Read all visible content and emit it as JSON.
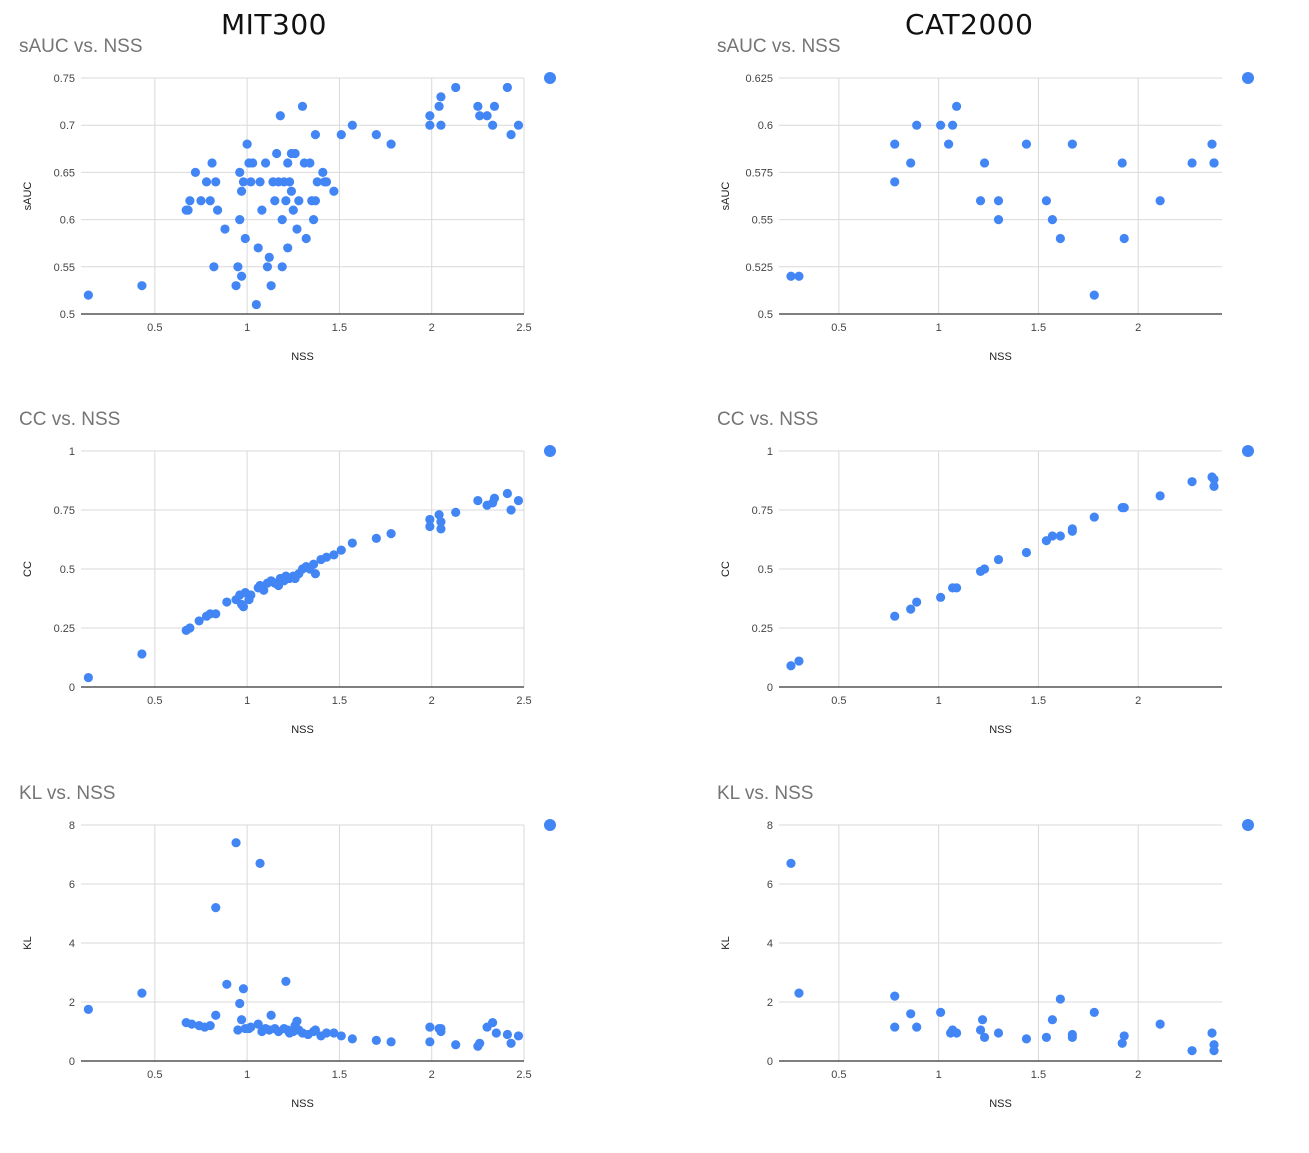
{
  "column_titles": [
    "MIT300",
    "CAT2000"
  ],
  "colors": {
    "point": "#4285f4",
    "grid": "#d9d9d9",
    "axis": "#333333",
    "title": "#757575"
  },
  "chart_data": [
    {
      "type": "scatter",
      "title": "sAUC vs. NSS",
      "xlabel": "NSS",
      "ylabel": "sAUC",
      "xlim": [
        0.1,
        2.5
      ],
      "ylim": [
        0.5,
        0.75
      ],
      "xticks": [
        0.5,
        1,
        1.5,
        2,
        2.5
      ],
      "xtick_labels": [
        "0.5",
        "1",
        "1.5",
        "2",
        "2.5"
      ],
      "yticks": [
        0.5,
        0.55,
        0.6,
        0.65,
        0.7,
        0.75
      ],
      "ytick_labels": [
        "0.5",
        "0.55",
        "0.6",
        "0.65",
        "0.7",
        "0.75"
      ],
      "legend": "top-right",
      "x": [
        0.14,
        0.43,
        0.67,
        0.68,
        0.69,
        0.72,
        0.75,
        0.78,
        0.8,
        0.81,
        0.82,
        0.83,
        0.84,
        0.88,
        0.94,
        0.95,
        0.96,
        0.96,
        0.97,
        0.97,
        0.98,
        0.99,
        1.0,
        1.01,
        1.02,
        1.03,
        1.05,
        1.06,
        1.07,
        1.08,
        1.1,
        1.11,
        1.12,
        1.13,
        1.14,
        1.15,
        1.16,
        1.17,
        1.18,
        1.19,
        1.19,
        1.2,
        1.21,
        1.22,
        1.22,
        1.23,
        1.24,
        1.24,
        1.25,
        1.26,
        1.27,
        1.28,
        1.3,
        1.31,
        1.32,
        1.34,
        1.35,
        1.36,
        1.37,
        1.37,
        1.38,
        1.41,
        1.42,
        1.43,
        1.47,
        1.51,
        1.57,
        1.7,
        1.78,
        1.99,
        1.99,
        2.04,
        2.05,
        2.05,
        2.13,
        2.25,
        2.26,
        2.3,
        2.33,
        2.34,
        2.41,
        2.43,
        2.47
      ],
      "y": [
        0.52,
        0.53,
        0.61,
        0.61,
        0.62,
        0.65,
        0.62,
        0.64,
        0.62,
        0.66,
        0.55,
        0.64,
        0.61,
        0.59,
        0.53,
        0.55,
        0.65,
        0.6,
        0.63,
        0.54,
        0.64,
        0.58,
        0.68,
        0.66,
        0.64,
        0.66,
        0.51,
        0.57,
        0.64,
        0.61,
        0.66,
        0.55,
        0.56,
        0.53,
        0.64,
        0.62,
        0.67,
        0.64,
        0.71,
        0.55,
        0.6,
        0.64,
        0.62,
        0.66,
        0.57,
        0.64,
        0.67,
        0.63,
        0.61,
        0.67,
        0.59,
        0.62,
        0.72,
        0.66,
        0.58,
        0.66,
        0.62,
        0.6,
        0.62,
        0.69,
        0.64,
        0.65,
        0.64,
        0.64,
        0.63,
        0.69,
        0.7,
        0.69,
        0.68,
        0.71,
        0.7,
        0.72,
        0.73,
        0.7,
        0.74,
        0.72,
        0.71,
        0.71,
        0.7,
        0.72,
        0.74,
        0.69,
        0.7
      ]
    },
    {
      "type": "scatter",
      "title": "sAUC vs. NSS",
      "xlabel": "NSS",
      "ylabel": "sAUC",
      "xlim": [
        0.2,
        2.42
      ],
      "ylim": [
        0.5,
        0.625
      ],
      "xticks": [
        0.5,
        1,
        1.5,
        2
      ],
      "xtick_labels": [
        "0.5",
        "1",
        "1.5",
        "2"
      ],
      "yticks": [
        0.5,
        0.525,
        0.55,
        0.575,
        0.6,
        0.625
      ],
      "ytick_labels": [
        "0.5",
        "0.525",
        "0.55",
        "0.575",
        "0.6",
        "0.625"
      ],
      "legend": "top-right",
      "x": [
        0.26,
        0.3,
        0.78,
        0.78,
        0.86,
        0.89,
        1.01,
        1.05,
        1.07,
        1.09,
        1.21,
        1.23,
        1.3,
        1.3,
        1.44,
        1.54,
        1.57,
        1.61,
        1.67,
        1.78,
        1.92,
        1.93,
        2.11,
        2.27,
        2.37,
        2.38,
        2.38
      ],
      "y": [
        0.52,
        0.52,
        0.59,
        0.57,
        0.58,
        0.6,
        0.6,
        0.59,
        0.6,
        0.61,
        0.56,
        0.58,
        0.56,
        0.55,
        0.59,
        0.56,
        0.55,
        0.54,
        0.59,
        0.51,
        0.58,
        0.54,
        0.56,
        0.58,
        0.59,
        0.58,
        0.58
      ]
    },
    {
      "type": "scatter",
      "title": "CC vs. NSS",
      "xlabel": "NSS",
      "ylabel": "CC",
      "xlim": [
        0.1,
        2.5
      ],
      "ylim": [
        0,
        1
      ],
      "xticks": [
        0.5,
        1,
        1.5,
        2,
        2.5
      ],
      "xtick_labels": [
        "0.5",
        "1",
        "1.5",
        "2",
        "2.5"
      ],
      "yticks": [
        0,
        0.25,
        0.5,
        0.75,
        1
      ],
      "ytick_labels": [
        "0",
        "0.25",
        "0.5",
        "0.75",
        "1"
      ],
      "legend": "top-right",
      "x": [
        0.14,
        0.43,
        0.67,
        0.69,
        0.74,
        0.78,
        0.8,
        0.83,
        0.89,
        0.94,
        0.96,
        0.97,
        0.98,
        0.99,
        1.01,
        1.02,
        1.06,
        1.07,
        1.09,
        1.11,
        1.13,
        1.15,
        1.17,
        1.18,
        1.2,
        1.21,
        1.23,
        1.25,
        1.26,
        1.28,
        1.3,
        1.32,
        1.34,
        1.36,
        1.37,
        1.4,
        1.43,
        1.47,
        1.51,
        1.57,
        1.7,
        1.78,
        1.99,
        1.99,
        2.04,
        2.05,
        2.05,
        2.13,
        2.25,
        2.3,
        2.33,
        2.34,
        2.41,
        2.43,
        2.47
      ],
      "y": [
        0.04,
        0.14,
        0.24,
        0.25,
        0.28,
        0.3,
        0.31,
        0.31,
        0.36,
        0.37,
        0.39,
        0.35,
        0.34,
        0.4,
        0.37,
        0.39,
        0.42,
        0.43,
        0.41,
        0.44,
        0.45,
        0.44,
        0.43,
        0.46,
        0.45,
        0.47,
        0.46,
        0.47,
        0.46,
        0.48,
        0.5,
        0.51,
        0.5,
        0.52,
        0.48,
        0.54,
        0.55,
        0.56,
        0.58,
        0.61,
        0.63,
        0.65,
        0.71,
        0.68,
        0.73,
        0.7,
        0.67,
        0.74,
        0.79,
        0.77,
        0.78,
        0.8,
        0.82,
        0.75,
        0.79
      ]
    },
    {
      "type": "scatter",
      "title": "CC vs. NSS",
      "xlabel": "NSS",
      "ylabel": "CC",
      "xlim": [
        0.2,
        2.42
      ],
      "ylim": [
        0,
        1
      ],
      "xticks": [
        0.5,
        1,
        1.5,
        2
      ],
      "xtick_labels": [
        "0.5",
        "1",
        "1.5",
        "2"
      ],
      "yticks": [
        0,
        0.25,
        0.5,
        0.75,
        1
      ],
      "ytick_labels": [
        "0",
        "0.25",
        "0.5",
        "0.75",
        "1"
      ],
      "legend": "top-right",
      "x": [
        0.26,
        0.3,
        0.78,
        0.86,
        0.89,
        1.01,
        1.07,
        1.09,
        1.21,
        1.23,
        1.3,
        1.44,
        1.54,
        1.57,
        1.61,
        1.67,
        1.67,
        1.78,
        1.92,
        1.93,
        2.11,
        2.27,
        2.37,
        2.38,
        2.38
      ],
      "y": [
        0.09,
        0.11,
        0.3,
        0.33,
        0.36,
        0.38,
        0.42,
        0.42,
        0.49,
        0.5,
        0.54,
        0.57,
        0.62,
        0.64,
        0.64,
        0.66,
        0.67,
        0.72,
        0.76,
        0.76,
        0.81,
        0.87,
        0.89,
        0.88,
        0.85
      ]
    },
    {
      "type": "scatter",
      "title": "KL vs. NSS",
      "xlabel": "NSS",
      "ylabel": "KL",
      "xlim": [
        0.1,
        2.5
      ],
      "ylim": [
        0,
        8
      ],
      "xticks": [
        0.5,
        1,
        1.5,
        2,
        2.5
      ],
      "xtick_labels": [
        "0.5",
        "1",
        "1.5",
        "2",
        "2.5"
      ],
      "yticks": [
        0,
        2,
        4,
        6,
        8
      ],
      "ytick_labels": [
        "0",
        "2",
        "4",
        "6",
        "8"
      ],
      "legend": "top-right",
      "x": [
        0.14,
        0.43,
        0.67,
        0.7,
        0.74,
        0.77,
        0.8,
        0.83,
        0.83,
        0.89,
        0.94,
        0.95,
        0.96,
        0.97,
        0.98,
        0.99,
        1.01,
        1.02,
        1.06,
        1.07,
        1.08,
        1.1,
        1.12,
        1.13,
        1.15,
        1.17,
        1.2,
        1.21,
        1.22,
        1.23,
        1.25,
        1.26,
        1.27,
        1.28,
        1.3,
        1.33,
        1.36,
        1.37,
        1.4,
        1.43,
        1.47,
        1.51,
        1.57,
        1.7,
        1.78,
        1.99,
        1.99,
        2.04,
        2.05,
        2.05,
        2.13,
        2.25,
        2.26,
        2.3,
        2.33,
        2.35,
        2.41,
        2.43,
        2.47
      ],
      "y": [
        1.75,
        2.3,
        1.3,
        1.25,
        1.2,
        1.15,
        1.2,
        1.55,
        5.2,
        2.6,
        7.4,
        1.05,
        1.95,
        1.4,
        2.45,
        1.1,
        1.1,
        1.15,
        1.25,
        6.7,
        1.0,
        1.1,
        1.05,
        1.55,
        1.1,
        1.0,
        1.1,
        2.7,
        1.05,
        0.95,
        1.0,
        1.2,
        1.35,
        1.05,
        0.95,
        0.9,
        1.0,
        1.05,
        0.85,
        0.95,
        0.95,
        0.85,
        0.75,
        0.7,
        0.65,
        1.15,
        0.65,
        1.1,
        1.0,
        1.1,
        0.55,
        0.5,
        0.6,
        1.15,
        1.3,
        0.95,
        0.9,
        0.6,
        0.85
      ]
    },
    {
      "type": "scatter",
      "title": "KL vs. NSS",
      "xlabel": "NSS",
      "ylabel": "KL",
      "xlim": [
        0.2,
        2.42
      ],
      "ylim": [
        0,
        8
      ],
      "xticks": [
        0.5,
        1,
        1.5,
        2
      ],
      "xtick_labels": [
        "0.5",
        "1",
        "1.5",
        "2"
      ],
      "yticks": [
        0,
        2,
        4,
        6,
        8
      ],
      "ytick_labels": [
        "0",
        "2",
        "4",
        "6",
        "8"
      ],
      "legend": "top-right",
      "x": [
        0.26,
        0.3,
        0.78,
        0.78,
        0.86,
        0.89,
        1.01,
        1.06,
        1.07,
        1.09,
        1.21,
        1.22,
        1.23,
        1.3,
        1.44,
        1.54,
        1.57,
        1.61,
        1.67,
        1.67,
        1.78,
        1.92,
        1.93,
        2.11,
        2.27,
        2.37,
        2.38,
        2.38
      ],
      "y": [
        6.7,
        2.3,
        2.2,
        1.15,
        1.6,
        1.15,
        1.65,
        0.95,
        1.05,
        0.95,
        1.05,
        1.4,
        0.8,
        0.95,
        0.75,
        0.8,
        1.4,
        2.1,
        0.9,
        0.8,
        1.65,
        0.6,
        0.85,
        1.25,
        0.35,
        0.95,
        0.55,
        0.35
      ]
    }
  ]
}
